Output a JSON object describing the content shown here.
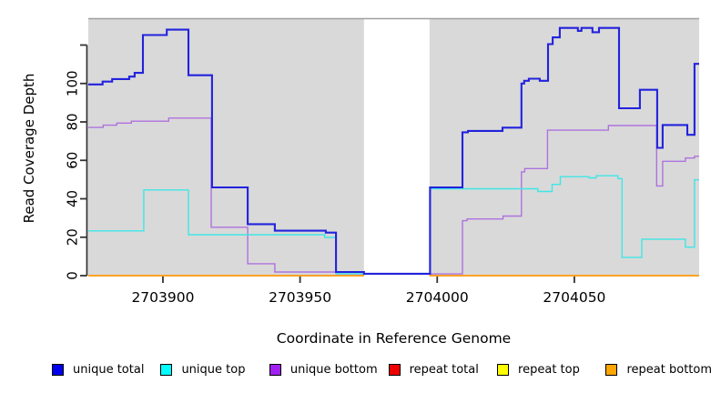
{
  "figure": {
    "ylabel": "Read Coverage Depth",
    "xlabel": "Coordinate in Reference Genome"
  },
  "legend": {
    "items": [
      {
        "label": "unique total",
        "color": "#0000EE"
      },
      {
        "label": "unique top",
        "color": "#00FFFF"
      },
      {
        "label": "unique bottom",
        "color": "#A020F0"
      },
      {
        "label": "repeat total",
        "color": "#EE0000"
      },
      {
        "label": "repeat top",
        "color": "#FFFF00"
      },
      {
        "label": "repeat bottom",
        "color": "#FFA500"
      }
    ]
  },
  "chart_data": {
    "type": "line",
    "step": true,
    "title": "",
    "xlabel": "Coordinate in Reference Genome",
    "ylabel": "Read Coverage Depth",
    "x_domain": [
      2703872.8,
      2704095.5
    ],
    "y_domain": [
      0,
      133.5
    ],
    "x_ticks": [
      {
        "v": 2703900,
        "label": "2703900"
      },
      {
        "v": 2703950,
        "label": "2703950"
      },
      {
        "v": 2704000,
        "label": "2704000"
      },
      {
        "v": 2704050,
        "label": "2704050"
      }
    ],
    "y_ticks": [
      {
        "v": 0,
        "label": "0"
      },
      {
        "v": 20,
        "label": "20"
      },
      {
        "v": 40,
        "label": "40"
      },
      {
        "v": 60,
        "label": "60"
      },
      {
        "v": 80,
        "label": "80"
      },
      {
        "v": 100,
        "label": "100"
      },
      {
        "v": 120,
        "label": ""
      }
    ],
    "gap_region": {
      "x0": 2703973.3,
      "x1": 2703997.2
    },
    "colors": {
      "plot_background": "#d9d9d9",
      "gap_band": "#ffffff",
      "top_border": "#a0a0a0",
      "axis": "#333333",
      "tick_label": "#000000"
    },
    "series": [
      {
        "name": "repeat total",
        "color": "#DD2222",
        "lw": 1.4,
        "segments": [
          {
            "end": 2703973.3,
            "pts": [
              [
                2703872.8,
                0
              ]
            ]
          },
          {
            "end": 2704095.5,
            "pts": [
              [
                2703997.2,
                0
              ]
            ]
          }
        ]
      },
      {
        "name": "repeat top",
        "color": "#F2E422",
        "lw": 1.4,
        "segments": [
          {
            "end": 2703973.3,
            "pts": [
              [
                2703872.8,
                0
              ]
            ]
          },
          {
            "end": 2704095.5,
            "pts": [
              [
                2703997.2,
                0
              ]
            ]
          }
        ]
      },
      {
        "name": "repeat bottom",
        "color": "#FFA021",
        "lw": 1.8,
        "segments": [
          {
            "end": 2703973.3,
            "pts": [
              [
                2703872.8,
                0
              ]
            ]
          },
          {
            "end": 2704095.5,
            "pts": [
              [
                2703997.2,
                0
              ]
            ]
          }
        ]
      },
      {
        "name": "unique bottom",
        "color": "#AE72DF",
        "lw": 1.4,
        "segments": [
          {
            "end": 2704095.5,
            "pts": [
              [
                2703872.8,
                77.1
              ],
              [
                2703878.2,
                78.3
              ],
              [
                2703883.2,
                79.4
              ],
              [
                2703888.5,
                80.4
              ],
              [
                2703902.1,
                82.0
              ],
              [
                2703917.6,
                25.2
              ],
              [
                2703930.9,
                6.2
              ],
              [
                2703940.8,
                1.9
              ],
              [
                2703963.1,
                0.9
              ],
              [
                2704009.2,
                28.6
              ],
              [
                2704010.9,
                29.5
              ],
              [
                2704024.0,
                31.0
              ],
              [
                2704030.7,
                54.0
              ],
              [
                2704031.9,
                55.7
              ],
              [
                2704040.2,
                75.7
              ],
              [
                2704062.4,
                78.1
              ],
              [
                2704080.0,
                46.7
              ],
              [
                2704082.2,
                59.5
              ],
              [
                2704090.5,
                61.2
              ],
              [
                2704093.8,
                62.1
              ]
            ]
          }
        ]
      },
      {
        "name": "unique top",
        "color": "#3FE6E6",
        "lw": 1.4,
        "segments": [
          {
            "end": 2704095.5,
            "pts": [
              [
                2703872.8,
                23.3
              ],
              [
                2703893.0,
                44.6
              ],
              [
                2703909.3,
                21.3
              ],
              [
                2703959.0,
                19.9
              ],
              [
                2703963.1,
                1.0
              ],
              [
                2703997.4,
                45.2
              ],
              [
                2704036.7,
                43.8
              ],
              [
                2704041.9,
                47.5
              ],
              [
                2704044.9,
                51.5
              ],
              [
                2704055.3,
                50.9
              ],
              [
                2704058.0,
                52.0
              ],
              [
                2704065.9,
                50.5
              ],
              [
                2704067.4,
                9.5
              ],
              [
                2704074.6,
                19.0
              ],
              [
                2704090.5,
                14.8
              ],
              [
                2704093.8,
                49.9
              ]
            ]
          }
        ]
      },
      {
        "name": "unique total",
        "color": "#2222DD",
        "lw": 2.1,
        "segments": [
          {
            "end": 2704095.5,
            "pts": [
              [
                2703872.8,
                99.5
              ],
              [
                2703878.0,
                101.0
              ],
              [
                2703881.5,
                102.3
              ],
              [
                2703887.7,
                103.6
              ],
              [
                2703889.7,
                105.5
              ],
              [
                2703892.7,
                125.2
              ],
              [
                2703901.4,
                128.0
              ],
              [
                2703909.3,
                104.3
              ],
              [
                2703917.9,
                45.9
              ],
              [
                2703930.9,
                26.8
              ],
              [
                2703940.8,
                23.4
              ],
              [
                2703959.4,
                22.4
              ],
              [
                2703963.1,
                1.9
              ],
              [
                2703973.3,
                1.0
              ],
              [
                2703997.4,
                45.9
              ],
              [
                2704009.2,
                74.6
              ],
              [
                2704011.2,
                75.3
              ],
              [
                2704023.8,
                77.0
              ],
              [
                2704030.7,
                100.0
              ],
              [
                2704031.7,
                101.4
              ],
              [
                2704033.4,
                102.5
              ],
              [
                2704037.4,
                101.4
              ],
              [
                2704040.4,
                120.5
              ],
              [
                2704042.1,
                124.0
              ],
              [
                2704044.7,
                128.9
              ],
              [
                2704051.3,
                127.4
              ],
              [
                2704052.6,
                128.9
              ],
              [
                2704056.6,
                126.7
              ],
              [
                2704059.0,
                128.9
              ],
              [
                2704066.3,
                87.1
              ],
              [
                2704073.9,
                96.7
              ],
              [
                2704080.2,
                66.5
              ],
              [
                2704082.2,
                78.4
              ],
              [
                2704091.2,
                73.3
              ],
              [
                2704093.8,
                110.2
              ]
            ]
          }
        ]
      }
    ]
  }
}
